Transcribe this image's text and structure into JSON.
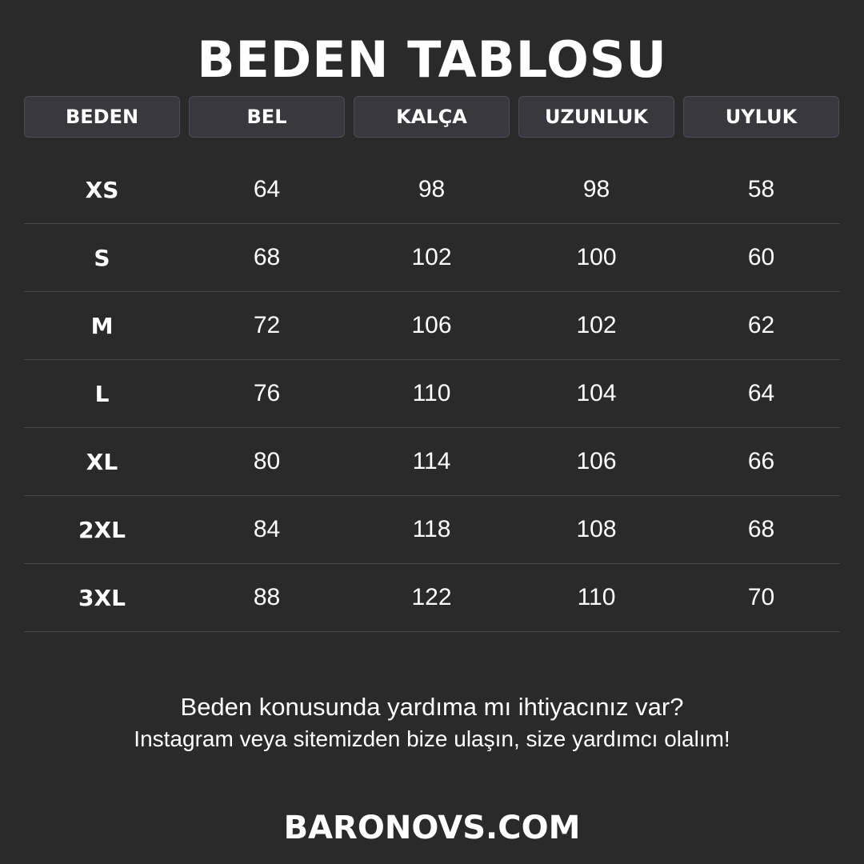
{
  "title": "BEDEN TABLOSU",
  "headers": [
    "BEDEN",
    "BEL",
    "KALÇA",
    "UZUNLUK",
    "UYLUK"
  ],
  "rows": [
    [
      "XS",
      "64",
      "98",
      "98",
      "58"
    ],
    [
      "S",
      "68",
      "102",
      "100",
      "60"
    ],
    [
      "M",
      "72",
      "106",
      "102",
      "62"
    ],
    [
      "L",
      "76",
      "110",
      "104",
      "64"
    ],
    [
      "XL",
      "80",
      "114",
      "106",
      "66"
    ],
    [
      "2XL",
      "84",
      "118",
      "108",
      "68"
    ],
    [
      "3XL",
      "88",
      "122",
      "110",
      "70"
    ]
  ],
  "footer": {
    "line1": "Beden konusunda yardıma mı ihtiyacınız var?",
    "line2": "Instagram veya sitemizden bize ulaşın, size yardımcı olalım!",
    "brand": "BARONOVS.COM"
  }
}
